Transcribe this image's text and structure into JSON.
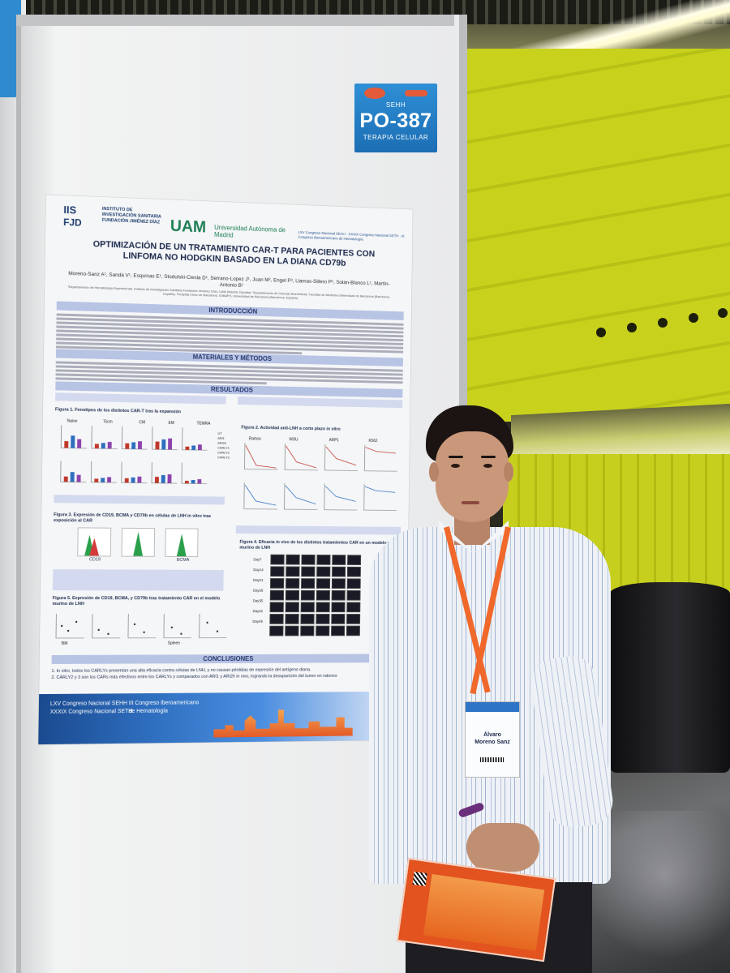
{
  "sign": {
    "org": "SEHH",
    "code": "PO-387",
    "category": "TERAPIA CELULAR"
  },
  "poster": {
    "logo_iis": "IIS",
    "logo_fjd": "FJD",
    "institute": "INSTITUTO DE INVESTIGACIÓN SANITARIA FUNDACIÓN JIMÉNEZ DÍAZ",
    "uam_logo": "UAM",
    "uam_name": "Universidad Autónoma de Madrid",
    "congress_header": "LXV Congreso Nacional SEHH · XXXIX Congreso Nacional SETH · III Congreso Iberoamericano de Hematología",
    "title": "OPTIMIZACIÓN DE UN TRATAMIENTO CAR-T PARA PACIENTES CON LINFOMA NO HODGKIN BASADO EN LA DIANA CD79b",
    "authors": "Moreno-Sanz A¹, Sandá V¹, Esquinas E¹, Stodulski-Ciesla D¹, Serrano-Lopez J¹, Juan M², Engel P³, Llamas-Sillero P¹, Solán-Blanco L¹, Martín-Antonio B¹",
    "affiliations": "¹Departamento de Hematología Experimental, Instituto de Investigación Sanitaria Fundación Jiménez Díaz, UAM (Madrid, España). ²Departamento de Ciencias Biomédicas, Facultad de Medicina Universidad de Barcelona (Barcelona, España). ³Hospital Clínic de Barcelona, IDIBAPS, Universidad de Barcelona (Barcelona, España).",
    "sections": {
      "intro": "INTRODUCCIÓN",
      "methods": "MATERIALES Y MÉTODOS",
      "results": "RESULTADOS",
      "conclusions": "CONCLUSIONES"
    },
    "figures": {
      "fig1": "Figura 1. Fenotipos de los distintos CAR-T tras la expansión",
      "fig2": "Figura 2. Actividad anti-LNH a corto plazo in vitro",
      "fig3": "Figura 3. Expresión de CD19, BCMA y CD79b en células de LNH in vitro tras exposición al CAR",
      "fig4": "Figura 4. Eficacia in vivo de los distintos tratamientos CAR en un modelo murino de LNH",
      "fig5": "Figura 5. Expresión de CD19, BCMA, y CD79b tras tratamiento CAR en el modelo murino de LNH"
    },
    "fig1_panels": [
      "Naive",
      "Tscm",
      "CM",
      "EM",
      "TEMRA"
    ],
    "fig1_legend": [
      "UT",
      "ARI1",
      "ARI2h",
      "CARLY1",
      "CARLY2",
      "CARLY3"
    ],
    "fig2_panels": [
      "Ramos",
      "WSU",
      "ARP1",
      "K562"
    ],
    "fig3_labels": [
      "CD19",
      "BCMA"
    ],
    "fig4_days": [
      "Day7",
      "Day14",
      "Day21",
      "Day28",
      "Day35",
      "Day42",
      "Day49"
    ],
    "fig5_labels": [
      "BM",
      "Spleen"
    ],
    "conclusions": [
      "1. In vitro, todos los CARLYs presentan una alta eficacia contra células de LNH, y no causan pérdidas de expresión del antígeno diana.",
      "2. CARLY2 y 3 son los CARs más efectivos entre los CARLYs y comparados con ARI1 y ARI2h in vivo, logrando la desaparición del tumor en ratones"
    ],
    "footer_left": [
      "LXV Congreso Nacional SEHH",
      "XXXIX Congreso Nacional SETH"
    ],
    "footer_mid": [
      "III Congreso Iberoamericano",
      "de Hematología"
    ]
  },
  "badge": {
    "name_first": "Álvaro",
    "name_last": "Moreno Sanz"
  },
  "chart_data": {
    "type": "bar",
    "title": "Figura 1. Fenotipos de los distintos CAR-T tras la expansión",
    "categories": [
      "Naive",
      "Tscm",
      "CM",
      "EM",
      "TEMRA"
    ],
    "series": [
      {
        "name": "UT",
        "values": [
          30,
          20,
          25,
          35,
          15
        ]
      },
      {
        "name": "ARI1",
        "values": [
          55,
          25,
          30,
          45,
          20
        ]
      },
      {
        "name": "CARLY1",
        "values": [
          40,
          30,
          35,
          50,
          25
        ]
      }
    ],
    "ylim": [
      0,
      100
    ]
  }
}
